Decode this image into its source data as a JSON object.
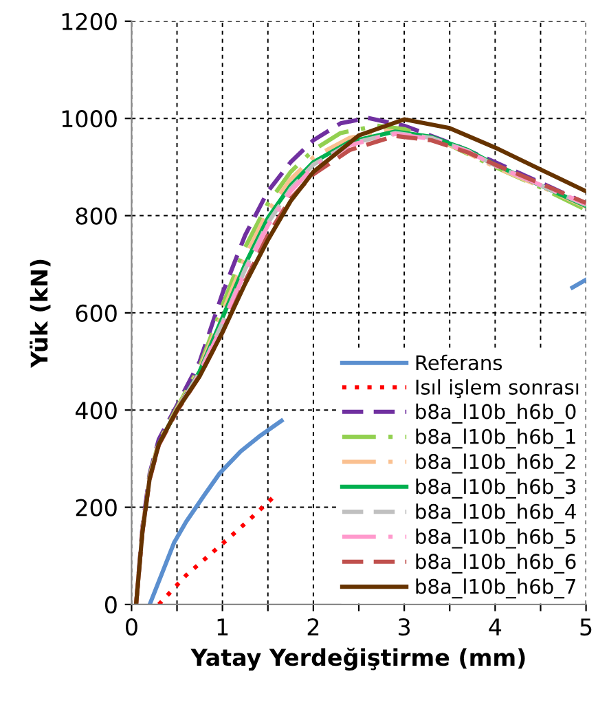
{
  "chart_data": {
    "type": "line",
    "xlabel": "Yatay Yerdeğiştirme (mm)",
    "ylabel": "Yük (kN)",
    "xlim": [
      0,
      5
    ],
    "ylim": [
      0,
      1200
    ],
    "xticks": [
      0,
      {
        "value": 0.5,
        "label": null
      },
      1,
      {
        "value": 1.5,
        "label": null
      },
      2,
      {
        "value": 2.5,
        "label": null
      },
      3,
      {
        "value": 3.5,
        "label": null
      },
      4,
      {
        "value": 4.5,
        "label": null
      },
      5
    ],
    "yticks": [
      0,
      200,
      400,
      600,
      800,
      1000,
      1200
    ],
    "grid": true,
    "legend": "bottom right",
    "series": [
      {
        "name": "Referans",
        "color": "#5b8fcf",
        "line_style": "solid",
        "x": [
          0.2,
          0.47,
          0.6,
          0.8,
          0.97,
          1.2,
          1.4,
          1.65,
          3.0,
          4.85,
          5.0
        ],
        "values": [
          0,
          128,
          170,
          225,
          270,
          315,
          345,
          378,
          null,
          652,
          668
        ]
      },
      {
        "name": "Isıl işlem sonrası",
        "color": "#ff0000",
        "line_style": "dotted",
        "x": [
          0.3,
          0.6,
          1.0,
          1.3,
          1.6
        ],
        "values": [
          0,
          60,
          125,
          175,
          228
        ]
      },
      {
        "name": "b8a_l10b_h6b_0",
        "color": "#7030a0",
        "line_style": "dashed",
        "x": [
          0.05,
          0.12,
          0.2,
          0.3,
          0.5,
          0.75,
          1.0,
          1.25,
          1.5,
          1.75,
          2.0,
          2.3,
          2.6,
          3.0,
          3.5,
          4.0,
          4.5,
          5.0
        ],
        "values": [
          0,
          160,
          270,
          340,
          410,
          500,
          640,
          760,
          850,
          910,
          955,
          990,
          1001,
          985,
          950,
          910,
          868,
          825
        ]
      },
      {
        "name": "b8a_l10b_h6b_1",
        "color": "#92d050",
        "line_style": "dashdot",
        "x": [
          0.05,
          0.12,
          0.2,
          0.3,
          0.5,
          0.75,
          1.0,
          1.25,
          1.5,
          1.75,
          2.0,
          2.3,
          2.7,
          3.0,
          3.5,
          4.0,
          4.5,
          5.0
        ],
        "values": [
          0,
          155,
          265,
          335,
          405,
          490,
          615,
          735,
          825,
          890,
          935,
          970,
          985,
          978,
          945,
          900,
          858,
          812
        ]
      },
      {
        "name": "b8a_l10b_h6b_2",
        "color": "#fac090",
        "line_style": "dashdot",
        "x": [
          0.05,
          0.12,
          0.2,
          0.3,
          0.5,
          0.75,
          1.0,
          1.25,
          1.5,
          1.75,
          2.0,
          2.4,
          2.8,
          3.2,
          3.6,
          4.0,
          4.5,
          5.0
        ],
        "values": [
          0,
          155,
          262,
          333,
          402,
          485,
          600,
          715,
          810,
          875,
          920,
          960,
          975,
          965,
          938,
          900,
          860,
          818
        ]
      },
      {
        "name": "b8a_l10b_h6b_3",
        "color": "#00b050",
        "line_style": "solid",
        "x": [
          0.3,
          0.5,
          0.75,
          1.0,
          1.25,
          1.5,
          1.75,
          2.0,
          2.4,
          2.9,
          3.3,
          3.7,
          4.0,
          4.5,
          5.0
        ],
        "values": [
          330,
          400,
          480,
          590,
          700,
          795,
          862,
          910,
          952,
          973,
          962,
          935,
          905,
          862,
          820
        ]
      },
      {
        "name": "b8a_l10b_h6b_4",
        "color": "#c0c0c0",
        "line_style": "dashed",
        "x": [
          0.05,
          0.12,
          0.2,
          0.3,
          0.5,
          0.75,
          1.0,
          1.25,
          1.5,
          1.75,
          2.0,
          2.4,
          2.9,
          3.3,
          3.7,
          4.0,
          4.5,
          5.0
        ],
        "values": [
          0,
          152,
          260,
          330,
          400,
          478,
          580,
          690,
          785,
          855,
          905,
          948,
          970,
          960,
          933,
          903,
          862,
          822
        ]
      },
      {
        "name": "b8a_l10b_h6b_5",
        "color": "#ff99cc",
        "line_style": "dashdot",
        "x": [
          0.05,
          0.12,
          0.2,
          0.3,
          0.5,
          0.75,
          1.0,
          1.25,
          1.5,
          1.75,
          2.0,
          2.4,
          2.9,
          3.3,
          3.7,
          4.0,
          4.5,
          5.0
        ],
        "values": [
          0,
          152,
          260,
          330,
          400,
          475,
          575,
          685,
          780,
          850,
          900,
          945,
          968,
          958,
          932,
          903,
          863,
          824
        ]
      },
      {
        "name": "b8a_l10b_h6b_6",
        "color": "#c0504d",
        "line_style": "dashed",
        "x": [
          0.05,
          0.12,
          0.2,
          0.3,
          0.5,
          0.75,
          1.0,
          1.25,
          1.5,
          1.75,
          2.0,
          2.4,
          2.9,
          3.3,
          3.7,
          4.0,
          4.5,
          5.0
        ],
        "values": [
          0,
          150,
          258,
          328,
          398,
          470,
          560,
          665,
          760,
          835,
          885,
          935,
          964,
          955,
          930,
          905,
          866,
          826
        ]
      },
      {
        "name": "b8a_l10b_h6b_7",
        "color": "#663300",
        "line_style": "solid",
        "x": [
          0.05,
          0.12,
          0.2,
          0.3,
          0.5,
          0.75,
          1.0,
          1.25,
          1.5,
          1.75,
          2.0,
          2.5,
          3.0,
          3.5,
          4.0,
          4.5,
          5.0
        ],
        "values": [
          0,
          150,
          260,
          330,
          400,
          470,
          560,
          660,
          750,
          830,
          890,
          965,
          998,
          980,
          940,
          895,
          850
        ]
      }
    ]
  }
}
